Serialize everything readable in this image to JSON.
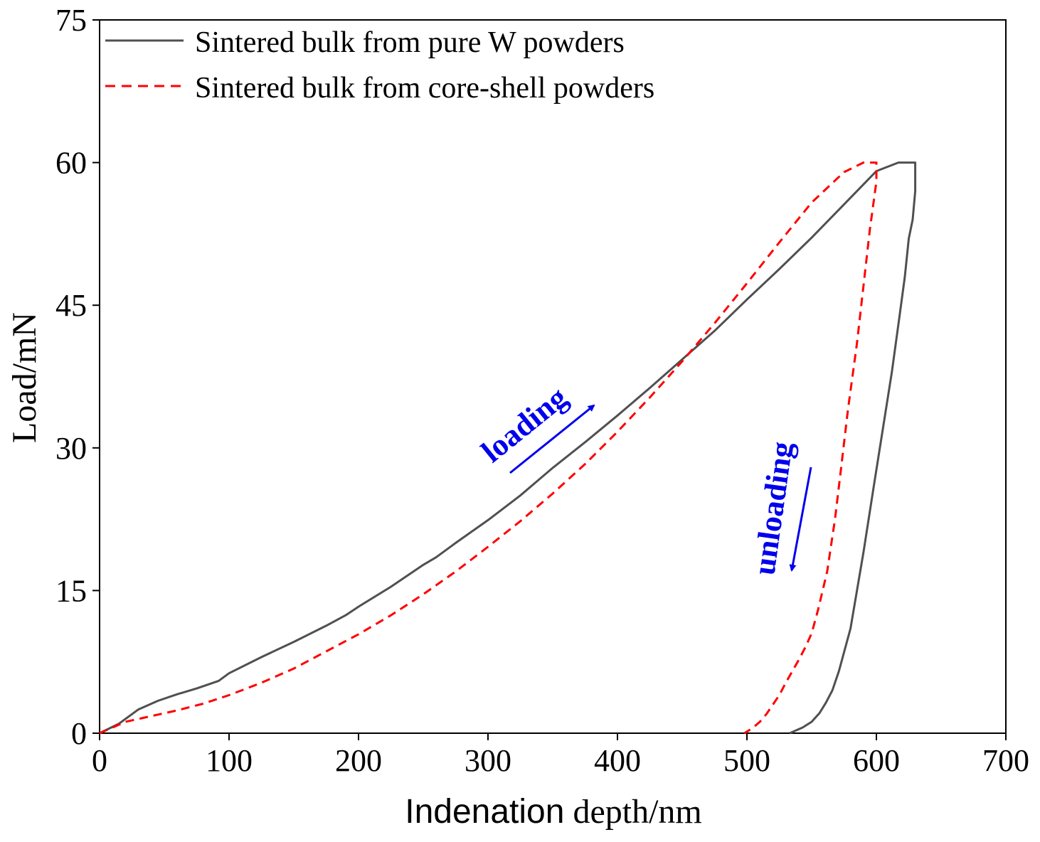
{
  "chart_data": {
    "type": "line",
    "title": "",
    "xlabel_part1": "Indenation",
    "xlabel_part2": " depth/nm",
    "ylabel": "Load/mN",
    "xlim": [
      0,
      700
    ],
    "ylim": [
      0,
      75
    ],
    "xticks": [
      "0",
      "100",
      "200",
      "300",
      "400",
      "500",
      "600",
      "700"
    ],
    "yticks": [
      "0",
      "15",
      "30",
      "45",
      "60",
      "75"
    ],
    "legend_position": "top-left",
    "series": [
      {
        "name": "Sintered bulk from pure W powders",
        "color": "#505050",
        "style": "solid",
        "x": [
          0,
          15,
          30,
          45,
          60,
          75,
          92,
          100,
          125,
          150,
          175,
          190,
          200,
          225,
          250,
          260,
          275,
          300,
          325,
          350,
          375,
          400,
          425,
          450,
          475,
          500,
          525,
          550,
          575,
          600,
          617,
          625,
          630,
          630,
          628,
          625,
          622,
          618,
          612,
          605,
          598,
          590,
          580,
          571,
          566,
          561,
          556,
          550,
          543,
          533
        ],
        "y": [
          0,
          1,
          2.5,
          3.4,
          4.1,
          4.7,
          5.5,
          6.3,
          8,
          9.6,
          11.3,
          12.4,
          13.3,
          15.4,
          17.7,
          18.5,
          20,
          22.4,
          25,
          27.9,
          30.6,
          33.4,
          36.3,
          39.3,
          42.3,
          45.6,
          48.8,
          52.1,
          55.6,
          59.1,
          60,
          60,
          60,
          57,
          54,
          52,
          48,
          44,
          38,
          32,
          26,
          19,
          11,
          6.5,
          4.5,
          3.2,
          2.1,
          1.2,
          0.6,
          0
        ]
      },
      {
        "name": "Sintered bulk from core-shell powders",
        "color": "#ff0000",
        "style": "dashed",
        "x": [
          0,
          20,
          40,
          60,
          80,
          100,
          125,
          150,
          175,
          200,
          225,
          250,
          275,
          300,
          325,
          350,
          375,
          400,
          425,
          450,
          475,
          500,
          525,
          550,
          575,
          590,
          600,
          600,
          595,
          590,
          585,
          578,
          572,
          568,
          562,
          555,
          550,
          545,
          540,
          535,
          530,
          525,
          520,
          515,
          510,
          504,
          498
        ],
        "y": [
          0,
          1.2,
          1.8,
          2.4,
          3.1,
          4,
          5.3,
          6.8,
          8.6,
          10.4,
          12.4,
          14.6,
          17,
          19.6,
          22.3,
          25.2,
          28.3,
          31.7,
          35.3,
          39.1,
          43.1,
          47.3,
          51.6,
          55.8,
          59,
          60,
          60,
          58,
          53,
          47,
          41,
          34,
          27,
          22.5,
          17,
          13,
          10.5,
          9,
          7.7,
          6.5,
          5.3,
          4,
          3,
          2,
          1.2,
          0.5,
          0
        ]
      }
    ],
    "annotations": [
      {
        "text": "loading",
        "direction": "up-right"
      },
      {
        "text": "unloading",
        "direction": "down"
      }
    ]
  }
}
